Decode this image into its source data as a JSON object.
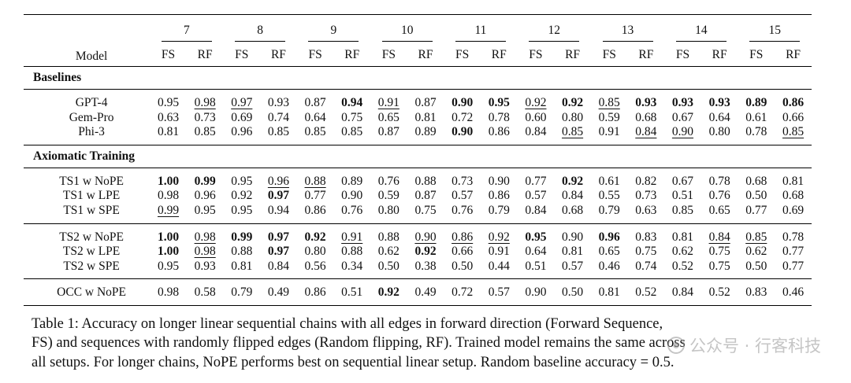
{
  "table": {
    "model_header": "Model",
    "lengths": [
      "7",
      "8",
      "9",
      "10",
      "11",
      "12",
      "13",
      "14",
      "15"
    ],
    "sub_headers": [
      "FS",
      "RF"
    ],
    "sections": [
      {
        "title": "Baselines",
        "groups": [
          [
            {
              "model": "GPT-4",
              "cells": [
                {
                  "v": "0.95"
                },
                {
                  "v": "0.98",
                  "u": true
                },
                {
                  "v": "0.97",
                  "u": true
                },
                {
                  "v": "0.93"
                },
                {
                  "v": "0.87"
                },
                {
                  "v": "0.94",
                  "b": true
                },
                {
                  "v": "0.91",
                  "u": true
                },
                {
                  "v": "0.87"
                },
                {
                  "v": "0.90",
                  "b": true
                },
                {
                  "v": "0.95",
                  "b": true
                },
                {
                  "v": "0.92",
                  "u": true
                },
                {
                  "v": "0.92",
                  "b": true
                },
                {
                  "v": "0.85",
                  "u": true
                },
                {
                  "v": "0.93",
                  "b": true
                },
                {
                  "v": "0.93",
                  "b": true
                },
                {
                  "v": "0.93",
                  "b": true
                },
                {
                  "v": "0.89",
                  "b": true
                },
                {
                  "v": "0.86",
                  "b": true
                }
              ]
            },
            {
              "model": "Gem-Pro",
              "cells": [
                {
                  "v": "0.63"
                },
                {
                  "v": "0.73"
                },
                {
                  "v": "0.69"
                },
                {
                  "v": "0.74"
                },
                {
                  "v": "0.64"
                },
                {
                  "v": "0.75"
                },
                {
                  "v": "0.65"
                },
                {
                  "v": "0.81"
                },
                {
                  "v": "0.72"
                },
                {
                  "v": "0.78"
                },
                {
                  "v": "0.60"
                },
                {
                  "v": "0.80"
                },
                {
                  "v": "0.59"
                },
                {
                  "v": "0.68"
                },
                {
                  "v": "0.67"
                },
                {
                  "v": "0.64"
                },
                {
                  "v": "0.61"
                },
                {
                  "v": "0.66"
                }
              ]
            },
            {
              "model": "Phi-3",
              "cells": [
                {
                  "v": "0.81"
                },
                {
                  "v": "0.85"
                },
                {
                  "v": "0.96"
                },
                {
                  "v": "0.85"
                },
                {
                  "v": "0.85"
                },
                {
                  "v": "0.85"
                },
                {
                  "v": "0.87"
                },
                {
                  "v": "0.89"
                },
                {
                  "v": "0.90",
                  "b": true
                },
                {
                  "v": "0.86"
                },
                {
                  "v": "0.84"
                },
                {
                  "v": "0.85",
                  "u": true
                },
                {
                  "v": "0.91"
                },
                {
                  "v": "0.84",
                  "u": true
                },
                {
                  "v": "0.90",
                  "u": true
                },
                {
                  "v": "0.80"
                },
                {
                  "v": "0.78"
                },
                {
                  "v": "0.85",
                  "u": true
                }
              ]
            }
          ]
        ]
      },
      {
        "title": "Axiomatic Training",
        "groups": [
          [
            {
              "model": "TS1 w NoPE",
              "cells": [
                {
                  "v": "1.00",
                  "b": true
                },
                {
                  "v": "0.99",
                  "b": true
                },
                {
                  "v": "0.95"
                },
                {
                  "v": "0.96",
                  "u": true
                },
                {
                  "v": "0.88",
                  "u": true
                },
                {
                  "v": "0.89"
                },
                {
                  "v": "0.76"
                },
                {
                  "v": "0.88"
                },
                {
                  "v": "0.73"
                },
                {
                  "v": "0.90"
                },
                {
                  "v": "0.77"
                },
                {
                  "v": "0.92",
                  "b": true
                },
                {
                  "v": "0.61"
                },
                {
                  "v": "0.82"
                },
                {
                  "v": "0.67"
                },
                {
                  "v": "0.78"
                },
                {
                  "v": "0.68"
                },
                {
                  "v": "0.81"
                }
              ]
            },
            {
              "model": "TS1 w LPE",
              "cells": [
                {
                  "v": "0.98"
                },
                {
                  "v": "0.96"
                },
                {
                  "v": "0.92"
                },
                {
                  "v": "0.97",
                  "b": true
                },
                {
                  "v": "0.77"
                },
                {
                  "v": "0.90"
                },
                {
                  "v": "0.59"
                },
                {
                  "v": "0.87"
                },
                {
                  "v": "0.57"
                },
                {
                  "v": "0.86"
                },
                {
                  "v": "0.57"
                },
                {
                  "v": "0.84"
                },
                {
                  "v": "0.55"
                },
                {
                  "v": "0.73"
                },
                {
                  "v": "0.51"
                },
                {
                  "v": "0.76"
                },
                {
                  "v": "0.50"
                },
                {
                  "v": "0.68"
                }
              ]
            },
            {
              "model": "TS1 w SPE",
              "cells": [
                {
                  "v": "0.99",
                  "u": true
                },
                {
                  "v": "0.95"
                },
                {
                  "v": "0.95"
                },
                {
                  "v": "0.94"
                },
                {
                  "v": "0.86"
                },
                {
                  "v": "0.76"
                },
                {
                  "v": "0.80"
                },
                {
                  "v": "0.75"
                },
                {
                  "v": "0.76"
                },
                {
                  "v": "0.79"
                },
                {
                  "v": "0.84"
                },
                {
                  "v": "0.68"
                },
                {
                  "v": "0.79"
                },
                {
                  "v": "0.63"
                },
                {
                  "v": "0.85"
                },
                {
                  "v": "0.65"
                },
                {
                  "v": "0.77"
                },
                {
                  "v": "0.69"
                }
              ]
            }
          ],
          [
            {
              "model": "TS2 w NoPE",
              "cells": [
                {
                  "v": "1.00",
                  "b": true
                },
                {
                  "v": "0.98",
                  "u": true
                },
                {
                  "v": "0.99",
                  "b": true
                },
                {
                  "v": "0.97",
                  "b": true
                },
                {
                  "v": "0.92",
                  "b": true
                },
                {
                  "v": "0.91",
                  "u": true
                },
                {
                  "v": "0.88"
                },
                {
                  "v": "0.90",
                  "u": true
                },
                {
                  "v": "0.86",
                  "u": true
                },
                {
                  "v": "0.92",
                  "u": true
                },
                {
                  "v": "0.95",
                  "b": true
                },
                {
                  "v": "0.90"
                },
                {
                  "v": "0.96",
                  "b": true
                },
                {
                  "v": "0.83"
                },
                {
                  "v": "0.81"
                },
                {
                  "v": "0.84",
                  "u": true
                },
                {
                  "v": "0.85",
                  "u": true
                },
                {
                  "v": "0.78"
                }
              ]
            },
            {
              "model": "TS2 w LPE",
              "cells": [
                {
                  "v": "1.00",
                  "b": true
                },
                {
                  "v": "0.98",
                  "u": true
                },
                {
                  "v": "0.88"
                },
                {
                  "v": "0.97",
                  "b": true
                },
                {
                  "v": "0.80"
                },
                {
                  "v": "0.88"
                },
                {
                  "v": "0.62"
                },
                {
                  "v": "0.92",
                  "b": true
                },
                {
                  "v": "0.66"
                },
                {
                  "v": "0.91"
                },
                {
                  "v": "0.64"
                },
                {
                  "v": "0.81"
                },
                {
                  "v": "0.65"
                },
                {
                  "v": "0.75"
                },
                {
                  "v": "0.62"
                },
                {
                  "v": "0.75"
                },
                {
                  "v": "0.62"
                },
                {
                  "v": "0.77"
                }
              ]
            },
            {
              "model": "TS2 w SPE",
              "cells": [
                {
                  "v": "0.95"
                },
                {
                  "v": "0.93"
                },
                {
                  "v": "0.81"
                },
                {
                  "v": "0.84"
                },
                {
                  "v": "0.56"
                },
                {
                  "v": "0.34"
                },
                {
                  "v": "0.50"
                },
                {
                  "v": "0.38"
                },
                {
                  "v": "0.50"
                },
                {
                  "v": "0.44"
                },
                {
                  "v": "0.51"
                },
                {
                  "v": "0.57"
                },
                {
                  "v": "0.46"
                },
                {
                  "v": "0.74"
                },
                {
                  "v": "0.52"
                },
                {
                  "v": "0.75"
                },
                {
                  "v": "0.50"
                },
                {
                  "v": "0.77"
                }
              ]
            }
          ],
          [
            {
              "model": "OCC w NoPE",
              "cells": [
                {
                  "v": "0.98"
                },
                {
                  "v": "0.58"
                },
                {
                  "v": "0.79"
                },
                {
                  "v": "0.49"
                },
                {
                  "v": "0.86"
                },
                {
                  "v": "0.51"
                },
                {
                  "v": "0.92",
                  "b": true
                },
                {
                  "v": "0.49"
                },
                {
                  "v": "0.72"
                },
                {
                  "v": "0.57"
                },
                {
                  "v": "0.90"
                },
                {
                  "v": "0.50"
                },
                {
                  "v": "0.81"
                },
                {
                  "v": "0.52"
                },
                {
                  "v": "0.84"
                },
                {
                  "v": "0.52"
                },
                {
                  "v": "0.83"
                },
                {
                  "v": "0.46"
                }
              ]
            }
          ]
        ]
      }
    ]
  },
  "caption": {
    "line1": "Table 1: Accuracy on longer linear sequential chains with all edges in forward direction (Forward Sequence,",
    "line2": "FS) and sequences with randomly flipped edges (Random flipping, RF). Trained model remains the same across",
    "line3": "all setups. For longer chains, NoPE performs best on sequential linear setup. Random baseline accuracy = 0.5."
  },
  "watermark": {
    "text": "公众号 · 行客科技",
    "icon": "wechat-icon"
  }
}
